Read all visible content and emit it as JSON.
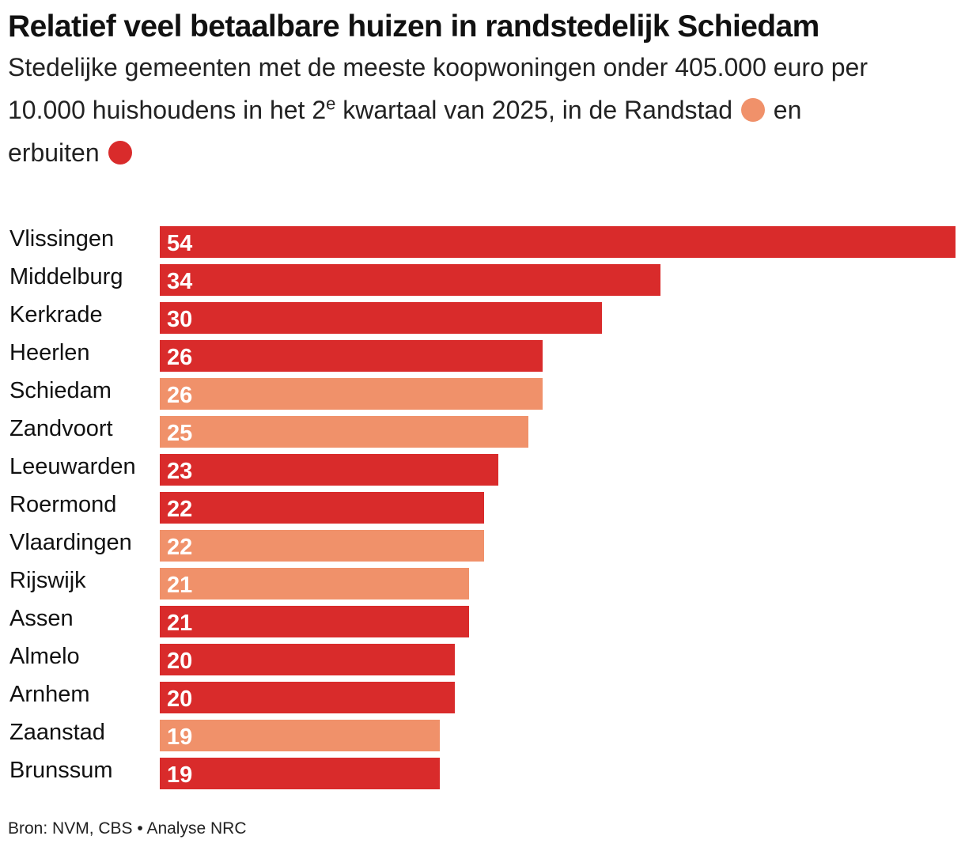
{
  "header": {
    "title": "Relatief veel betaalbare huizen in randstedelijk Schiedam",
    "subtitle_line1": "Stedelijke gemeenten met de meeste koopwoningen onder 405.000 euro per",
    "subtitle_line2_pre": "10.000 huishoudens in het 2",
    "subtitle_sup": "e",
    "subtitle_line2_mid": " kwartaal van 2025, in de Randstad",
    "subtitle_and": "en",
    "subtitle_line3": "erbuiten"
  },
  "colors": {
    "randstad": "#f0916a",
    "buiten": "#d92b2b"
  },
  "footer": {
    "source": "Bron: NVM, CBS",
    "separator": "•",
    "analysis": "Analyse NRC"
  },
  "chart_data": {
    "type": "bar",
    "orientation": "horizontal",
    "categories": [
      "Vlissingen",
      "Middelburg",
      "Kerkrade",
      "Heerlen",
      "Schiedam",
      "Zandvoort",
      "Leeuwarden",
      "Roermond",
      "Vlaardingen",
      "Rijswijk",
      "Assen",
      "Almelo",
      "Arnhem",
      "Zaanstad",
      "Brunssum"
    ],
    "values": [
      54,
      34,
      30,
      26,
      26,
      25,
      23,
      22,
      22,
      21,
      21,
      20,
      20,
      19,
      19
    ],
    "groups": [
      "buiten",
      "buiten",
      "buiten",
      "buiten",
      "randstad",
      "randstad",
      "buiten",
      "buiten",
      "randstad",
      "randstad",
      "buiten",
      "buiten",
      "buiten",
      "randstad",
      "buiten"
    ],
    "xlim": [
      0,
      54
    ],
    "grid": false,
    "legend": "inline in subtitle"
  }
}
